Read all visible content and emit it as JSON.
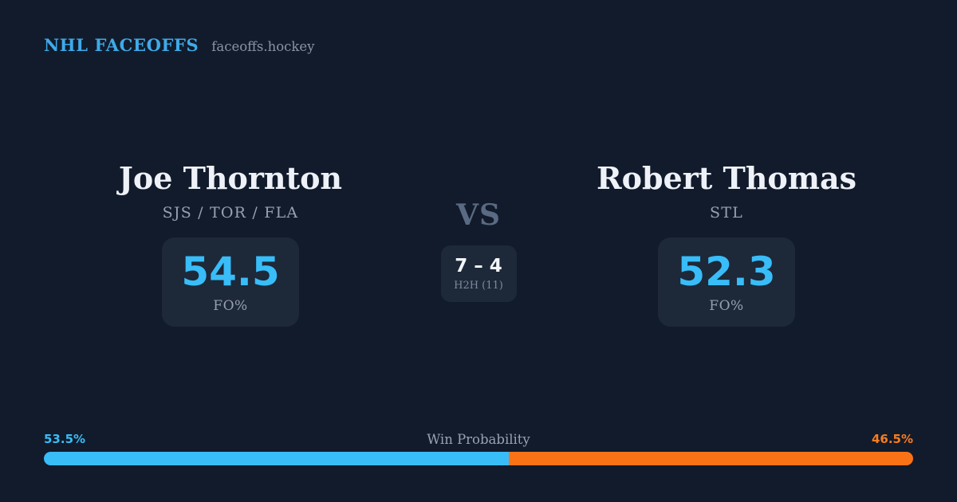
{
  "brand": {
    "title": "NHL FACEOFFS",
    "site": "faceoffs.hockey"
  },
  "players": {
    "left": {
      "name": "Joe Thornton",
      "teams": "SJS / TOR / FLA",
      "stat_value": "54.5",
      "stat_label": "FO%"
    },
    "right": {
      "name": "Robert Thomas",
      "teams": "STL",
      "stat_value": "52.3",
      "stat_label": "FO%"
    }
  },
  "matchup": {
    "vs_label": "VS",
    "h2h_score": "7 – 4",
    "h2h_label": "H2H (11)"
  },
  "win_probability": {
    "label": "Win Probability",
    "left_pct_text": "53.5%",
    "right_pct_text": "46.5%",
    "left_value": 53.5,
    "right_value": 46.5,
    "left_color": "#38bdf8",
    "right_color": "#f97316"
  },
  "colors": {
    "background": "#121b2b",
    "card": "#1d2839",
    "accent_blue": "#38bdf8",
    "accent_orange": "#f97316",
    "brand_blue": "#3faae8"
  }
}
